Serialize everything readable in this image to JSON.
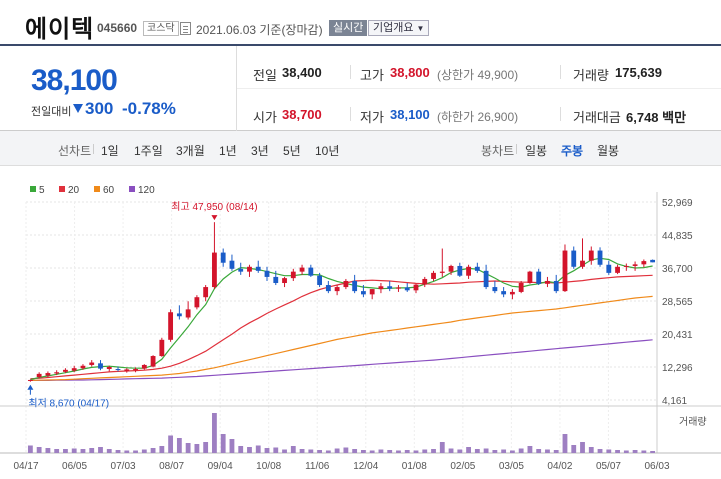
{
  "header": {
    "name": "에이텍",
    "code": "045660",
    "market": "코스닥",
    "date": "2021.06.03 기준(장마감)",
    "live": "실시간",
    "corp_info": "기업개요"
  },
  "price": {
    "current": "38,100",
    "change_label": "전일대비",
    "change": "300",
    "change_pct": "-0.78%"
  },
  "stats": {
    "prev_close_label": "전일",
    "prev_close": "38,400",
    "high_label": "고가",
    "high": "38,800",
    "upper_limit": "(상한가 49,900)",
    "volume_label": "거래량",
    "volume": "175,639",
    "open_label": "시가",
    "open": "38,700",
    "low_label": "저가",
    "low": "38,100",
    "lower_limit": "(하한가 26,900)",
    "amount_label": "거래대금",
    "amount": "6,748 백만"
  },
  "toolbar": {
    "line_label": "선차트",
    "ranges": [
      "1일",
      "1주일",
      "3개월",
      "1년",
      "3년",
      "5년",
      "10년"
    ],
    "candle_label": "봉차트",
    "candles": [
      "일봉",
      "주봉",
      "월봉"
    ],
    "active_candle": "주봉"
  },
  "colors": {
    "up": "#d3142b",
    "down": "#1a5cc8",
    "ma5": "#3aa83a",
    "ma20": "#e0313c",
    "ma60": "#f08a1a",
    "ma120": "#8a4fc0",
    "volume": "#9e7fc2"
  },
  "chart_data": {
    "type": "candlestick",
    "title": "",
    "legend": [
      {
        "name": "5",
        "color": "#3aa83a"
      },
      {
        "name": "20",
        "color": "#e0313c"
      },
      {
        "name": "60",
        "color": "#f08a1a"
      },
      {
        "name": "120",
        "color": "#8a4fc0"
      }
    ],
    "ylim": [
      4161,
      52969
    ],
    "y_ticks": [
      "52,969",
      "44,835",
      "36,700",
      "28,565",
      "20,431",
      "12,296",
      "4,161"
    ],
    "x_ticks": [
      "04/17",
      "06/05",
      "07/03",
      "08/07",
      "09/04",
      "10/08",
      "11/06",
      "12/04",
      "01/08",
      "02/05",
      "03/05",
      "04/02",
      "05/07",
      "06/03"
    ],
    "max_annotation": "최고 47,950 (08/14)",
    "min_annotation": "최저 8,670 (04/17)",
    "volume_label": "거래량",
    "candles": [
      [
        9000,
        9200,
        8670,
        9100
      ],
      [
        9800,
        11000,
        9600,
        10600
      ],
      [
        10200,
        11200,
        9800,
        10800
      ],
      [
        10700,
        11500,
        10300,
        11000
      ],
      [
        11100,
        12000,
        10800,
        11600
      ],
      [
        11400,
        12600,
        11000,
        12000
      ],
      [
        12000,
        13000,
        11600,
        12600
      ],
      [
        12800,
        14000,
        12400,
        13400
      ],
      [
        13200,
        14000,
        11500,
        11900
      ],
      [
        11800,
        12600,
        11200,
        12300
      ],
      [
        11800,
        12400,
        11200,
        11600
      ],
      [
        11300,
        12000,
        10900,
        11700
      ],
      [
        11500,
        12200,
        11000,
        11800
      ],
      [
        11900,
        13000,
        11600,
        12800
      ],
      [
        12400,
        15200,
        12200,
        15000
      ],
      [
        15000,
        19500,
        14800,
        19000
      ],
      [
        19000,
        26500,
        18500,
        25800
      ],
      [
        25500,
        27500,
        24000,
        24800
      ],
      [
        24500,
        28500,
        24000,
        26500
      ],
      [
        27000,
        30000,
        26500,
        29500
      ],
      [
        29500,
        32500,
        28500,
        32000
      ],
      [
        32000,
        48000,
        31500,
        40500
      ],
      [
        40500,
        41500,
        37000,
        38000
      ],
      [
        38500,
        40000,
        36000,
        36500
      ],
      [
        36500,
        38000,
        35000,
        35800
      ],
      [
        35800,
        37500,
        34500,
        37000
      ],
      [
        37000,
        38500,
        35500,
        36000
      ],
      [
        36000,
        37000,
        33500,
        34500
      ],
      [
        34500,
        36000,
        32500,
        33000
      ],
      [
        33000,
        34500,
        32000,
        34200
      ],
      [
        34200,
        36500,
        33500,
        35800
      ],
      [
        35800,
        37500,
        35000,
        36800
      ],
      [
        36800,
        37500,
        34500,
        34800
      ],
      [
        34800,
        35500,
        32000,
        32500
      ],
      [
        32500,
        33500,
        30500,
        31000
      ],
      [
        31000,
        32500,
        30000,
        32000
      ],
      [
        32000,
        34000,
        31500,
        33500
      ],
      [
        33500,
        35000,
        30500,
        31000
      ],
      [
        31000,
        32500,
        29500,
        30200
      ],
      [
        30200,
        31500,
        29000,
        31500
      ],
      [
        31500,
        33000,
        30500,
        32200
      ],
      [
        32200,
        33500,
        31000,
        31600
      ],
      [
        31600,
        32500,
        30800,
        31900
      ],
      [
        31900,
        33000,
        30800,
        31200
      ],
      [
        31200,
        32800,
        30500,
        32600
      ],
      [
        32600,
        34500,
        32000,
        34000
      ],
      [
        34000,
        36000,
        33500,
        35500
      ],
      [
        35500,
        41500,
        34500,
        35800
      ],
      [
        35800,
        37500,
        35000,
        37200
      ],
      [
        37200,
        38000,
        34500,
        34800
      ],
      [
        34800,
        37500,
        34000,
        37000
      ],
      [
        37000,
        38000,
        35500,
        36000
      ],
      [
        36000,
        37500,
        31500,
        32000
      ],
      [
        32000,
        33500,
        30500,
        31000
      ],
      [
        31000,
        32000,
        29500,
        30200
      ],
      [
        30200,
        31500,
        29000,
        30800
      ],
      [
        30800,
        33500,
        30500,
        33000
      ],
      [
        33000,
        36000,
        32800,
        35800
      ],
      [
        35800,
        36500,
        32500,
        32800
      ],
      [
        32800,
        34500,
        32000,
        33500
      ],
      [
        33500,
        35000,
        30500,
        31000
      ],
      [
        31000,
        42500,
        30800,
        41000
      ],
      [
        41000,
        42000,
        36500,
        37000
      ],
      [
        37000,
        44000,
        36500,
        38500
      ],
      [
        38500,
        42000,
        37500,
        41000
      ],
      [
        41000,
        41800,
        37000,
        37500
      ],
      [
        37500,
        38500,
        35000,
        35500
      ],
      [
        35500,
        37500,
        35200,
        37000
      ],
      [
        37000,
        37800,
        36000,
        37200
      ],
      [
        37200,
        38300,
        36000,
        37600
      ],
      [
        37600,
        38800,
        36900,
        38400
      ],
      [
        38700,
        38800,
        38100,
        38100
      ]
    ],
    "ma5": [
      9200,
      9700,
      10100,
      10500,
      10900,
      11300,
      11800,
      12200,
      12400,
      12500,
      12300,
      12100,
      12000,
      12000,
      12700,
      14200,
      17000,
      19600,
      22200,
      25200,
      27700,
      31600,
      34000,
      35700,
      36800,
      36600,
      36300,
      35800,
      35300,
      34800,
      34800,
      35100,
      35100,
      35000,
      34100,
      33400,
      32900,
      32400,
      32000,
      31800,
      31600,
      31700,
      31800,
      31800,
      32000,
      32700,
      33400,
      34300,
      35600,
      36200,
      36600,
      36400,
      35300,
      34200,
      33000,
      32200,
      32000,
      32500,
      32800,
      33400,
      33000,
      34900,
      36000,
      37400,
      38700,
      39100,
      38800,
      37700,
      37100,
      36700,
      36800,
      37200
    ],
    "ma20": [
      9400,
      9500,
      9700,
      9900,
      10100,
      10300,
      10500,
      10700,
      10900,
      11100,
      11200,
      11300,
      11400,
      11500,
      11700,
      12000,
      12500,
      13200,
      14100,
      15100,
      16200,
      17600,
      19000,
      20400,
      21900,
      23200,
      24300,
      25500,
      26600,
      27600,
      28600,
      29700,
      30600,
      31400,
      32000,
      32500,
      33000,
      33500,
      33600,
      33700,
      33600,
      33500,
      33300,
      33100,
      32900,
      32800,
      32700,
      32800,
      32900,
      33000,
      33200,
      33300,
      33400,
      33500,
      33400,
      33300,
      33200,
      33200,
      33100,
      33100,
      33000,
      33200,
      33400,
      33600,
      33900,
      34100,
      34300,
      34500,
      34600,
      34700,
      34800,
      34900
    ],
    "ma60": [
      9000,
      9050,
      9100,
      9150,
      9200,
      9300,
      9400,
      9500,
      9600,
      9700,
      9800,
      9900,
      10000,
      10100,
      10200,
      10300,
      10500,
      10700,
      11000,
      11300,
      11700,
      12100,
      12600,
      13100,
      13600,
      14100,
      14600,
      15100,
      15600,
      16100,
      16600,
      17100,
      17600,
      18100,
      18600,
      19100,
      19500,
      19900,
      20300,
      20700,
      21000,
      21300,
      21600,
      21900,
      22200,
      22500,
      22800,
      23100,
      23400,
      23800,
      24100,
      24400,
      24700,
      25000,
      25300,
      25600,
      25800,
      26000,
      26200,
      26400,
      26600,
      26900,
      27200,
      27500,
      27800,
      28100,
      28400,
      28700,
      29000,
      29300,
      29500,
      29700
    ],
    "ma120": [
      9000,
      9000,
      9000,
      9050,
      9050,
      9100,
      9100,
      9150,
      9200,
      9250,
      9300,
      9350,
      9400,
      9450,
      9500,
      9550,
      9650,
      9750,
      9850,
      9950,
      10100,
      10250,
      10400,
      10550,
      10700,
      10850,
      11000,
      11150,
      11300,
      11450,
      11600,
      11750,
      11900,
      12050,
      12200,
      12350,
      12500,
      12650,
      12800,
      12950,
      13100,
      13250,
      13400,
      13550,
      13700,
      13850,
      14000,
      14200,
      14400,
      14600,
      14800,
      15000,
      15200,
      15400,
      15600,
      15800,
      16000,
      16200,
      16400,
      16600,
      16800,
      17000,
      17200,
      17400,
      17600,
      17800,
      18000,
      18200,
      18400,
      18600,
      18800,
      19000
    ],
    "volume": [
      15,
      12,
      10,
      8,
      8,
      9,
      8,
      10,
      12,
      8,
      6,
      5,
      5,
      7,
      10,
      14,
      35,
      30,
      20,
      18,
      22,
      80,
      38,
      28,
      14,
      12,
      15,
      10,
      11,
      7,
      14,
      8,
      7,
      6,
      5,
      9,
      11,
      8,
      6,
      5,
      7,
      6,
      5,
      6,
      5,
      7,
      8,
      22,
      9,
      7,
      12,
      8,
      9,
      6,
      7,
      5,
      9,
      14,
      8,
      7,
      6,
      38,
      16,
      22,
      12,
      8,
      7,
      6,
      5,
      6,
      5,
      4
    ]
  }
}
